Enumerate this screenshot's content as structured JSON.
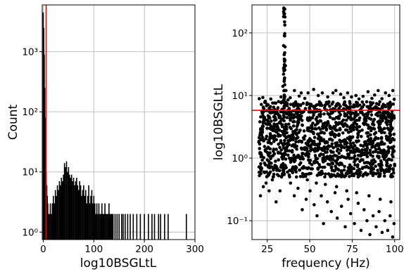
{
  "chart_data": [
    {
      "type": "bar",
      "xlabel": "log10BSGLtL",
      "ylabel": "Count",
      "yscale": "log",
      "xlim": [
        -2,
        300
      ],
      "ylim": [
        0.75,
        6000
      ],
      "grid": true,
      "legend": "none",
      "x_ticks": [
        0,
        100,
        200,
        300
      ],
      "x_tick_labels": [
        "0",
        "100",
        "200",
        "300"
      ],
      "y_ticks": [
        1,
        10,
        100,
        1000
      ],
      "y_tick_labels": [
        "10⁰",
        "10¹",
        "10²",
        "10³"
      ],
      "threshold_line": {
        "x": 5.8,
        "color": "#ff0000"
      },
      "bar_color": "#000000",
      "bins": [
        {
          "x": 0,
          "count": 4500
        },
        {
          "x": 1,
          "count": 2500
        },
        {
          "x": 2,
          "count": 900
        },
        {
          "x": 3,
          "count": 250
        },
        {
          "x": 4,
          "count": 80
        },
        {
          "x": 5,
          "count": 25
        },
        {
          "x": 6,
          "count": 10
        },
        {
          "x": 7,
          "count": 6
        },
        {
          "x": 8,
          "count": 4
        },
        {
          "x": 9,
          "count": 3
        },
        {
          "x": 10,
          "count": 2
        },
        {
          "x": 12,
          "count": 2
        },
        {
          "x": 14,
          "count": 3
        },
        {
          "x": 16,
          "count": 2
        },
        {
          "x": 18,
          "count": 3
        },
        {
          "x": 20,
          "count": 4
        },
        {
          "x": 22,
          "count": 3
        },
        {
          "x": 24,
          "count": 5
        },
        {
          "x": 26,
          "count": 4
        },
        {
          "x": 28,
          "count": 6
        },
        {
          "x": 30,
          "count": 5
        },
        {
          "x": 32,
          "count": 7
        },
        {
          "x": 34,
          "count": 6
        },
        {
          "x": 36,
          "count": 8
        },
        {
          "x": 38,
          "count": 7
        },
        {
          "x": 40,
          "count": 9
        },
        {
          "x": 42,
          "count": 14
        },
        {
          "x": 44,
          "count": 12
        },
        {
          "x": 46,
          "count": 15
        },
        {
          "x": 48,
          "count": 10
        },
        {
          "x": 50,
          "count": 12
        },
        {
          "x": 52,
          "count": 9
        },
        {
          "x": 54,
          "count": 8
        },
        {
          "x": 56,
          "count": 9
        },
        {
          "x": 58,
          "count": 7
        },
        {
          "x": 60,
          "count": 8
        },
        {
          "x": 62,
          "count": 6
        },
        {
          "x": 64,
          "count": 7
        },
        {
          "x": 66,
          "count": 8
        },
        {
          "x": 68,
          "count": 6
        },
        {
          "x": 70,
          "count": 5
        },
        {
          "x": 72,
          "count": 7
        },
        {
          "x": 74,
          "count": 6
        },
        {
          "x": 76,
          "count": 4
        },
        {
          "x": 78,
          "count": 5
        },
        {
          "x": 80,
          "count": 6
        },
        {
          "x": 82,
          "count": 4
        },
        {
          "x": 84,
          "count": 5
        },
        {
          "x": 86,
          "count": 3
        },
        {
          "x": 88,
          "count": 4
        },
        {
          "x": 90,
          "count": 6
        },
        {
          "x": 92,
          "count": 3
        },
        {
          "x": 94,
          "count": 4
        },
        {
          "x": 96,
          "count": 5
        },
        {
          "x": 98,
          "count": 3
        },
        {
          "x": 100,
          "count": 4
        },
        {
          "x": 102,
          "count": 3
        },
        {
          "x": 104,
          "count": 2
        },
        {
          "x": 106,
          "count": 3
        },
        {
          "x": 108,
          "count": 2
        },
        {
          "x": 110,
          "count": 3
        },
        {
          "x": 112,
          "count": 2
        },
        {
          "x": 114,
          "count": 2
        },
        {
          "x": 116,
          "count": 3
        },
        {
          "x": 118,
          "count": 2
        },
        {
          "x": 120,
          "count": 2
        },
        {
          "x": 122,
          "count": 3
        },
        {
          "x": 124,
          "count": 2
        },
        {
          "x": 126,
          "count": 2
        },
        {
          "x": 128,
          "count": 2
        },
        {
          "x": 130,
          "count": 3
        },
        {
          "x": 132,
          "count": 2
        },
        {
          "x": 134,
          "count": 2
        },
        {
          "x": 136,
          "count": 2
        },
        {
          "x": 138,
          "count": 2
        },
        {
          "x": 142,
          "count": 2
        },
        {
          "x": 146,
          "count": 2
        },
        {
          "x": 150,
          "count": 2
        },
        {
          "x": 155,
          "count": 2
        },
        {
          "x": 158,
          "count": 2
        },
        {
          "x": 162,
          "count": 2
        },
        {
          "x": 167,
          "count": 2
        },
        {
          "x": 172,
          "count": 2
        },
        {
          "x": 178,
          "count": 2
        },
        {
          "x": 185,
          "count": 2
        },
        {
          "x": 192,
          "count": 2
        },
        {
          "x": 200,
          "count": 2
        },
        {
          "x": 208,
          "count": 2
        },
        {
          "x": 215,
          "count": 2
        },
        {
          "x": 220,
          "count": 2
        },
        {
          "x": 228,
          "count": 2
        },
        {
          "x": 232,
          "count": 2
        },
        {
          "x": 240,
          "count": 2
        },
        {
          "x": 247,
          "count": 2
        },
        {
          "x": 283,
          "count": 2
        }
      ]
    },
    {
      "type": "scatter",
      "xlabel": "frequency (Hz)",
      "ylabel": "log10BSGLtL",
      "yscale": "log",
      "xlim": [
        16,
        103
      ],
      "ylim": [
        0.05,
        280
      ],
      "grid": true,
      "legend": "none",
      "x_ticks": [
        25,
        50,
        75,
        100
      ],
      "x_tick_labels": [
        "25",
        "50",
        "75",
        "100"
      ],
      "y_ticks": [
        0.1,
        1,
        10,
        100
      ],
      "y_tick_labels": [
        "10⁻¹",
        "10⁰",
        "10¹",
        "10²"
      ],
      "threshold_line": {
        "y": 5.8,
        "color": "#ff0000"
      },
      "point_color": "#000000",
      "x_range": [
        20,
        100
      ],
      "dense_band": [
        0.5,
        8
      ],
      "line_feature": {
        "x": 35,
        "y_max": 280
      },
      "points": [
        [
          20.3,
          8.9
        ],
        [
          21.5,
          7.2
        ],
        [
          22.4,
          9.3
        ],
        [
          23.8,
          8.1
        ],
        [
          27.1,
          8.8
        ],
        [
          29.4,
          7.6
        ],
        [
          31.6,
          8.0
        ],
        [
          33.1,
          9.5
        ],
        [
          34.2,
          14
        ],
        [
          34.6,
          22
        ],
        [
          35.0,
          45
        ],
        [
          35.1,
          90
        ],
        [
          35.2,
          150
        ],
        [
          35.3,
          240
        ],
        [
          35.4,
          180
        ],
        [
          35.5,
          60
        ],
        [
          35.7,
          30
        ],
        [
          36.0,
          12
        ],
        [
          37.2,
          8.5
        ],
        [
          38.5,
          9.2
        ],
        [
          41.0,
          12
        ],
        [
          43.8,
          9.8
        ],
        [
          45.0,
          11
        ],
        [
          47.1,
          9.0
        ],
        [
          49.0,
          11
        ],
        [
          52.3,
          12.5
        ],
        [
          55.0,
          10
        ],
        [
          57.4,
          11
        ],
        [
          60.6,
          9.5
        ],
        [
          63.7,
          11
        ],
        [
          65.4,
          12
        ],
        [
          68.2,
          10.5
        ],
        [
          70.1,
          9.2
        ],
        [
          72.3,
          11
        ],
        [
          74.6,
          9.5
        ],
        [
          77.2,
          10
        ],
        [
          79.0,
          8.8
        ],
        [
          81.4,
          9.7
        ],
        [
          84.3,
          11.5
        ],
        [
          86.6,
          9.0
        ],
        [
          88.2,
          10.2
        ],
        [
          90.3,
          12
        ],
        [
          92.5,
          8.9
        ],
        [
          94.6,
          11
        ],
        [
          96.7,
          10
        ],
        [
          98.9,
          12
        ],
        [
          99.7,
          8.7
        ],
        [
          21.0,
          0.25
        ],
        [
          22.7,
          0.35
        ],
        [
          24.3,
          0.4
        ],
        [
          26.1,
          0.3
        ],
        [
          28.0,
          0.45
        ],
        [
          30.2,
          0.2
        ],
        [
          32.5,
          0.3
        ],
        [
          38.7,
          0.4
        ],
        [
          40.9,
          0.25
        ],
        [
          43.1,
          0.33
        ],
        [
          45.6,
          0.15
        ],
        [
          47.9,
          0.22
        ],
        [
          50.2,
          0.3
        ],
        [
          52.6,
          0.18
        ],
        [
          54.3,
          0.12
        ],
        [
          56.8,
          0.25
        ],
        [
          58.1,
          0.09
        ],
        [
          60.4,
          0.2
        ],
        [
          62.7,
          0.14
        ],
        [
          64.9,
          0.28
        ],
        [
          66.2,
          0.11
        ],
        [
          68.7,
          0.17
        ],
        [
          70.9,
          0.08
        ],
        [
          72.6,
          0.22
        ],
        [
          74.1,
          0.13
        ],
        [
          76.3,
          0.09
        ],
        [
          78.5,
          0.19
        ],
        [
          80.2,
          0.07
        ],
        [
          82.0,
          0.15
        ],
        [
          83.7,
          0.1
        ],
        [
          85.4,
          0.06
        ],
        [
          87.3,
          0.12
        ],
        [
          89.1,
          0.08
        ],
        [
          90.8,
          0.14
        ],
        [
          92.6,
          0.065
        ],
        [
          94.2,
          0.1
        ],
        [
          95.9,
          0.07
        ],
        [
          97.3,
          0.12
        ],
        [
          98.8,
          0.055
        ],
        [
          99.6,
          0.09
        ],
        [
          23.1,
          0.6
        ],
        [
          25.7,
          0.55
        ],
        [
          29.0,
          0.7
        ],
        [
          33.4,
          0.5
        ],
        [
          36.9,
          0.6
        ],
        [
          42.2,
          0.5
        ],
        [
          48.6,
          0.45
        ],
        [
          53.9,
          0.4
        ],
        [
          59.2,
          0.38
        ],
        [
          65.8,
          0.35
        ],
        [
          71.8,
          0.3
        ],
        [
          77.6,
          0.28
        ],
        [
          84.9,
          0.25
        ],
        [
          91.5,
          0.22
        ],
        [
          97.8,
          0.2
        ]
      ]
    }
  ]
}
